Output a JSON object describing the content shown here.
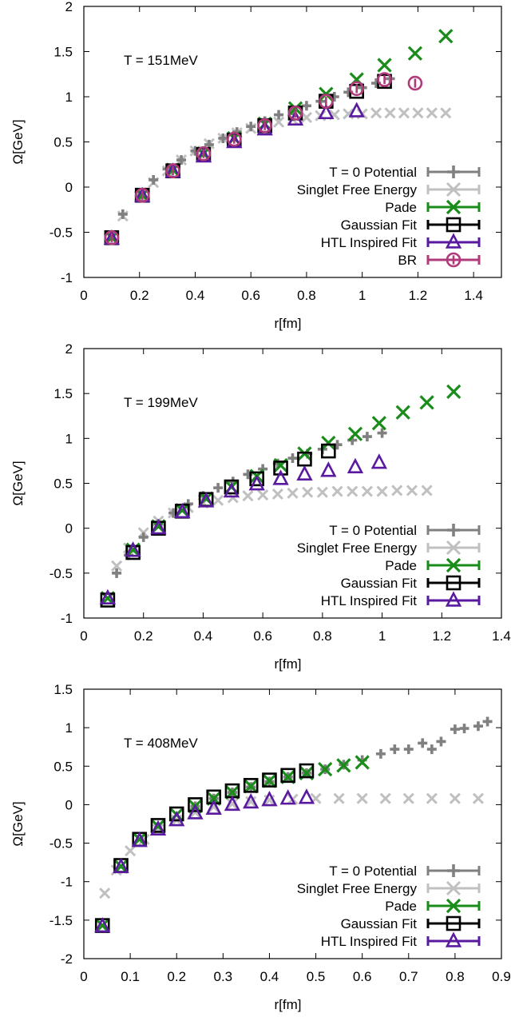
{
  "chart_data": [
    {
      "type": "scatter",
      "annotation": "T = 151MeV",
      "xlabel": "r[fm]",
      "ylabel": "Ω[GeV]",
      "xlim": [
        0,
        1.5
      ],
      "ylim": [
        -1,
        2
      ],
      "xticks": [
        "0",
        "0.2",
        "0.4",
        "0.6",
        "0.8",
        "1",
        "1.2",
        "1.4"
      ],
      "xtick_values": [
        0,
        0.2,
        0.4,
        0.6,
        0.8,
        1.0,
        1.2,
        1.4
      ],
      "yticks": [
        "-1",
        "-0.5",
        "0",
        "0.5",
        "1",
        "1.5",
        "2"
      ],
      "ytick_values": [
        -1,
        -0.5,
        0,
        0.5,
        1,
        1.5,
        2
      ],
      "legend_position": "bottom-right",
      "series": [
        {
          "name": "T = 0 Potential",
          "marker": "plus",
          "color": "#808080",
          "x": [
            0.14,
            0.2,
            0.25,
            0.3,
            0.35,
            0.4,
            0.45,
            0.5,
            0.55,
            0.6,
            0.65,
            0.7,
            0.75,
            0.8,
            0.85,
            0.9,
            0.95,
            1.0,
            1.05,
            1.1
          ],
          "y": [
            -0.3,
            -0.1,
            0.08,
            0.2,
            0.3,
            0.4,
            0.47,
            0.54,
            0.61,
            0.67,
            0.73,
            0.8,
            0.85,
            0.9,
            0.95,
            1.0,
            1.05,
            1.1,
            1.15,
            1.2
          ]
        },
        {
          "name": "Singlet Free Energy",
          "marker": "cross",
          "color": "#c0c0c0",
          "x": [
            0.14,
            0.2,
            0.25,
            0.3,
            0.35,
            0.4,
            0.45,
            0.5,
            0.55,
            0.6,
            0.65,
            0.7,
            0.75,
            0.8,
            0.85,
            0.9,
            0.95,
            1.0,
            1.05,
            1.1,
            1.15,
            1.2,
            1.25,
            1.3
          ],
          "y": [
            -0.32,
            -0.1,
            0.05,
            0.18,
            0.3,
            0.4,
            0.48,
            0.54,
            0.6,
            0.65,
            0.69,
            0.72,
            0.75,
            0.77,
            0.79,
            0.8,
            0.81,
            0.81,
            0.82,
            0.82,
            0.82,
            0.82,
            0.82,
            0.82
          ]
        },
        {
          "name": "Pade",
          "marker": "x",
          "color": "#1a8c1a",
          "x": [
            0.1,
            0.21,
            0.32,
            0.43,
            0.54,
            0.65,
            0.76,
            0.87,
            0.98,
            1.08,
            1.19,
            1.3
          ],
          "y": [
            -0.56,
            -0.09,
            0.19,
            0.37,
            0.54,
            0.7,
            0.87,
            1.03,
            1.19,
            1.35,
            1.48,
            1.67
          ]
        },
        {
          "name": "Gaussian Fit",
          "marker": "square",
          "color": "#000000",
          "x": [
            0.1,
            0.21,
            0.32,
            0.43,
            0.54,
            0.65,
            0.76,
            0.87,
            0.98,
            1.08
          ],
          "y": [
            -0.56,
            -0.09,
            0.18,
            0.36,
            0.52,
            0.68,
            0.82,
            0.95,
            1.06,
            1.17
          ]
        },
        {
          "name": "HTL Inspired Fit",
          "marker": "triangle",
          "color": "#5a1aa0",
          "x": [
            0.1,
            0.21,
            0.32,
            0.43,
            0.54,
            0.65,
            0.76,
            0.87,
            0.98
          ],
          "y": [
            -0.57,
            -0.1,
            0.17,
            0.34,
            0.5,
            0.64,
            0.75,
            0.82,
            0.84
          ]
        },
        {
          "name": "BR",
          "marker": "circle",
          "color": "#b03a7a",
          "x": [
            0.1,
            0.21,
            0.32,
            0.43,
            0.54,
            0.65,
            0.76,
            0.87,
            0.98,
            1.08,
            1.19
          ],
          "y": [
            -0.56,
            -0.09,
            0.18,
            0.37,
            0.53,
            0.68,
            0.82,
            0.95,
            1.09,
            1.19,
            1.15
          ]
        }
      ]
    },
    {
      "type": "scatter",
      "annotation": "T = 199MeV",
      "xlabel": "r[fm]",
      "ylabel": "Ω[GeV]",
      "xlim": [
        0,
        1.4
      ],
      "ylim": [
        -1,
        2
      ],
      "xticks": [
        "0",
        "0.2",
        "0.4",
        "0.6",
        "0.8",
        "1",
        "1.2",
        "1.4"
      ],
      "xtick_values": [
        0,
        0.2,
        0.4,
        0.6,
        0.8,
        1.0,
        1.2,
        1.4
      ],
      "yticks": [
        "-1",
        "-0.5",
        "0",
        "0.5",
        "1",
        "1.5",
        "2"
      ],
      "ytick_values": [
        -1,
        -0.5,
        0,
        0.5,
        1,
        1.5,
        2
      ],
      "legend_position": "bottom-right",
      "series": [
        {
          "name": "T = 0 Potential",
          "marker": "plus",
          "color": "#808080",
          "x": [
            0.11,
            0.15,
            0.2,
            0.25,
            0.3,
            0.35,
            0.4,
            0.45,
            0.5,
            0.55,
            0.6,
            0.65,
            0.7,
            0.75,
            0.8,
            0.85,
            0.9,
            0.95,
            1.0
          ],
          "y": [
            -0.5,
            -0.3,
            -0.1,
            0.05,
            0.17,
            0.27,
            0.36,
            0.45,
            0.52,
            0.6,
            0.66,
            0.72,
            0.78,
            0.83,
            0.88,
            0.93,
            0.98,
            1.02,
            1.06
          ]
        },
        {
          "name": "Singlet Free Energy",
          "marker": "cross",
          "color": "#c0c0c0",
          "x": [
            0.11,
            0.15,
            0.2,
            0.25,
            0.3,
            0.35,
            0.4,
            0.45,
            0.5,
            0.55,
            0.6,
            0.65,
            0.7,
            0.75,
            0.8,
            0.85,
            0.9,
            0.95,
            1.0,
            1.05,
            1.1,
            1.15
          ],
          "y": [
            -0.42,
            -0.22,
            -0.05,
            0.08,
            0.17,
            0.23,
            0.28,
            0.31,
            0.34,
            0.36,
            0.37,
            0.38,
            0.39,
            0.4,
            0.4,
            0.41,
            0.41,
            0.41,
            0.41,
            0.42,
            0.42,
            0.42
          ]
        },
        {
          "name": "Pade",
          "marker": "x",
          "color": "#1a8c1a",
          "x": [
            0.08,
            0.165,
            0.25,
            0.33,
            0.41,
            0.495,
            0.58,
            0.66,
            0.74,
            0.82,
            0.91,
            0.99,
            1.07,
            1.15,
            1.24
          ],
          "y": [
            -0.78,
            -0.24,
            0.02,
            0.2,
            0.33,
            0.46,
            0.58,
            0.7,
            0.83,
            0.95,
            1.05,
            1.17,
            1.29,
            1.4,
            1.52
          ]
        },
        {
          "name": "Gaussian Fit",
          "marker": "square",
          "color": "#000000",
          "x": [
            0.08,
            0.165,
            0.25,
            0.33,
            0.41,
            0.495,
            0.58,
            0.66,
            0.74,
            0.82
          ],
          "y": [
            -0.8,
            -0.27,
            0.0,
            0.19,
            0.32,
            0.46,
            0.55,
            0.67,
            0.77,
            0.86
          ]
        },
        {
          "name": "HTL Inspired Fit",
          "marker": "triangle",
          "color": "#5a1aa0",
          "x": [
            0.08,
            0.165,
            0.25,
            0.33,
            0.41,
            0.495,
            0.58,
            0.66,
            0.74,
            0.82,
            0.91,
            0.99
          ],
          "y": [
            -0.78,
            -0.25,
            0.0,
            0.18,
            0.3,
            0.41,
            0.49,
            0.55,
            0.6,
            0.64,
            0.68,
            0.73
          ]
        }
      ]
    },
    {
      "type": "scatter",
      "annotation": "T = 408MeV",
      "xlabel": "r[fm]",
      "ylabel": "Ω[GeV]",
      "xlim": [
        0,
        0.9
      ],
      "ylim": [
        -2,
        1.5
      ],
      "xticks": [
        "0",
        "0.1",
        "0.2",
        "0.3",
        "0.4",
        "0.5",
        "0.6",
        "0.7",
        "0.8",
        "0.9"
      ],
      "xtick_values": [
        0,
        0.1,
        0.2,
        0.3,
        0.4,
        0.5,
        0.6,
        0.7,
        0.8,
        0.9
      ],
      "yticks": [
        "-2",
        "-1.5",
        "-1",
        "-0.5",
        "0",
        "0.5",
        "1",
        "1.5"
      ],
      "ytick_values": [
        -2,
        -1.5,
        -1,
        -0.5,
        0,
        0.5,
        1,
        1.5
      ],
      "legend_position": "bottom-right",
      "series": [
        {
          "name": "T = 0 Potential",
          "marker": "plus",
          "color": "#808080",
          "x": [
            0.24,
            0.28,
            0.32,
            0.36,
            0.4,
            0.44,
            0.48,
            0.52,
            0.56,
            0.6,
            0.64,
            0.67,
            0.7,
            0.73,
            0.75,
            0.77,
            0.8,
            0.82,
            0.85,
            0.87
          ],
          "y": [
            -0.02,
            0.08,
            0.16,
            0.23,
            0.3,
            0.36,
            0.41,
            0.46,
            0.52,
            0.58,
            0.66,
            0.72,
            0.72,
            0.8,
            0.72,
            0.82,
            0.98,
            0.99,
            1.02,
            1.08
          ]
        },
        {
          "name": "Singlet Free Energy",
          "marker": "cross",
          "color": "#c0c0c0",
          "x": [
            0.045,
            0.07,
            0.1,
            0.13,
            0.16,
            0.2,
            0.24,
            0.28,
            0.32,
            0.36,
            0.4,
            0.45,
            0.5,
            0.55,
            0.6,
            0.65,
            0.7,
            0.75,
            0.8,
            0.85
          ],
          "y": [
            -1.15,
            -0.85,
            -0.6,
            -0.45,
            -0.32,
            -0.2,
            -0.1,
            -0.03,
            0.01,
            0.04,
            0.06,
            0.07,
            0.08,
            0.08,
            0.08,
            0.08,
            0.08,
            0.08,
            0.08,
            0.08
          ]
        },
        {
          "name": "Pade",
          "marker": "x",
          "color": "#1a8c1a",
          "x": [
            0.04,
            0.08,
            0.12,
            0.16,
            0.2,
            0.24,
            0.28,
            0.32,
            0.36,
            0.4,
            0.44,
            0.48,
            0.52,
            0.56,
            0.6
          ],
          "y": [
            -1.57,
            -0.8,
            -0.45,
            -0.28,
            -0.13,
            -0.02,
            0.08,
            0.16,
            0.24,
            0.31,
            0.36,
            0.41,
            0.46,
            0.51,
            0.55
          ]
        },
        {
          "name": "Gaussian Fit",
          "marker": "square",
          "color": "#000000",
          "x": [
            0.04,
            0.08,
            0.12,
            0.16,
            0.2,
            0.24,
            0.28,
            0.32,
            0.36,
            0.4,
            0.44,
            0.48
          ],
          "y": [
            -1.57,
            -0.79,
            -0.45,
            -0.27,
            -0.12,
            0.0,
            0.1,
            0.18,
            0.25,
            0.32,
            0.38,
            0.44
          ]
        },
        {
          "name": "HTL Inspired Fit",
          "marker": "triangle",
          "color": "#5a1aa0",
          "x": [
            0.04,
            0.08,
            0.12,
            0.16,
            0.2,
            0.24,
            0.28,
            0.32,
            0.36,
            0.4,
            0.44,
            0.48
          ],
          "y": [
            -1.58,
            -0.81,
            -0.47,
            -0.32,
            -0.2,
            -0.11,
            -0.05,
            0.0,
            0.03,
            0.06,
            0.08,
            0.09
          ]
        }
      ]
    }
  ]
}
